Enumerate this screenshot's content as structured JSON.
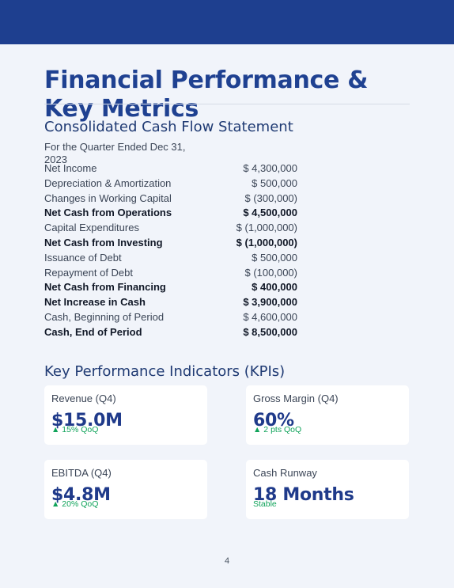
{
  "document": {
    "title": "Financial Performance & Key Metrics",
    "page_number": "4"
  },
  "cash_flow": {
    "heading": "Consolidated Cash Flow Statement",
    "subtitle": "For the Quarter Ended Dec 31, 2023",
    "rows": [
      {
        "label": "Net Income",
        "value": "$ 4,300,000",
        "total": false
      },
      {
        "label": "Depreciation & Amortization",
        "value": "$ 500,000",
        "total": false
      },
      {
        "label": "Changes in Working Capital",
        "value": "$ (300,000)",
        "total": false
      },
      {
        "label": "Net Cash from Operations",
        "value": "$ 4,500,000",
        "total": true
      },
      {
        "label": "Capital Expenditures",
        "value": "$ (1,000,000)",
        "total": false
      },
      {
        "label": "Net Cash from Investing",
        "value": "$ (1,000,000)",
        "total": true
      },
      {
        "label": "Issuance of Debt",
        "value": "$ 500,000",
        "total": false
      },
      {
        "label": "Repayment of Debt",
        "value": "$ (100,000)",
        "total": false
      },
      {
        "label": "Net Cash from Financing",
        "value": "$ 400,000",
        "total": true
      },
      {
        "label": "Net Increase in Cash",
        "value": "$ 3,900,000",
        "total": true
      },
      {
        "label": "Cash, Beginning of Period",
        "value": "$ 4,600,000",
        "total": false
      },
      {
        "label": "Cash, End of Period",
        "value": "$ 8,500,000",
        "total": true
      }
    ]
  },
  "kpis": {
    "heading": "Key Performance Indicators (KPIs)",
    "cards": [
      {
        "label": "Revenue (Q4)",
        "value": "$15.0M",
        "change": "▲ 15% QoQ"
      },
      {
        "label": "Gross Margin (Q4)",
        "value": "60%",
        "change": "▲ 2 pts QoQ"
      },
      {
        "label": "EBITDA (Q4)",
        "value": "$4.8M",
        "change": "▲ 20% QoQ"
      },
      {
        "label": "Cash Runway",
        "value": "18 Months",
        "change": "Stable"
      }
    ]
  },
  "colors": {
    "header_band": "#1e3f8f",
    "title": "#1f4191",
    "kpi_value": "#1f3a8a",
    "positive_change": "#10a35a",
    "page_background": "#f1f4fa"
  }
}
